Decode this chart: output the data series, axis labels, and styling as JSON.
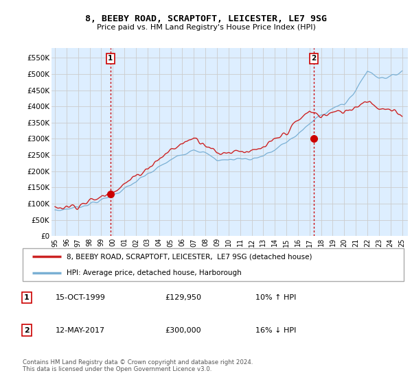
{
  "title": "8, BEEBY ROAD, SCRAPTOFT, LEICESTER, LE7 9SG",
  "subtitle": "Price paid vs. HM Land Registry's House Price Index (HPI)",
  "ylabel_ticks": [
    "£0",
    "£50K",
    "£100K",
    "£150K",
    "£200K",
    "£250K",
    "£300K",
    "£350K",
    "£400K",
    "£450K",
    "£500K",
    "£550K"
  ],
  "ytick_values": [
    0,
    50000,
    100000,
    150000,
    200000,
    250000,
    300000,
    350000,
    400000,
    450000,
    500000,
    550000
  ],
  "ylim": [
    0,
    580000
  ],
  "xlim_start": 1994.7,
  "xlim_end": 2025.5,
  "xtick_years": [
    1995,
    1996,
    1997,
    1998,
    1999,
    2000,
    2001,
    2002,
    2003,
    2004,
    2005,
    2006,
    2007,
    2008,
    2009,
    2010,
    2011,
    2012,
    2013,
    2014,
    2015,
    2016,
    2017,
    2018,
    2019,
    2020,
    2021,
    2022,
    2023,
    2024,
    2025
  ],
  "xtick_labels": [
    "95",
    "96",
    "97",
    "98",
    "99",
    "00",
    "01",
    "02",
    "03",
    "04",
    "05",
    "06",
    "07",
    "08",
    "09",
    "10",
    "11",
    "12",
    "13",
    "14",
    "15",
    "16",
    "17",
    "18",
    "19",
    "20",
    "21",
    "22",
    "23",
    "24",
    "25"
  ],
  "sale1_x": 1999.79,
  "sale1_y": 129950,
  "sale2_x": 2017.36,
  "sale2_y": 300000,
  "vline_color": "#cc0000",
  "sale_dot_color": "#cc0000",
  "hpi_line_color": "#7ab0d4",
  "price_line_color": "#cc2222",
  "grid_color": "#cccccc",
  "plot_bg_color": "#ddeeff",
  "legend_label_price": "8, BEEBY ROAD, SCRAPTOFT, LEICESTER,  LE7 9SG (detached house)",
  "legend_label_hpi": "HPI: Average price, detached house, Harborough",
  "sale1_date": "15-OCT-1999",
  "sale1_price": "£129,950",
  "sale1_hpi": "10% ↑ HPI",
  "sale2_date": "12-MAY-2017",
  "sale2_price": "£300,000",
  "sale2_hpi": "16% ↓ HPI",
  "footnote": "Contains HM Land Registry data © Crown copyright and database right 2024.\nThis data is licensed under the Open Government Licence v3.0."
}
